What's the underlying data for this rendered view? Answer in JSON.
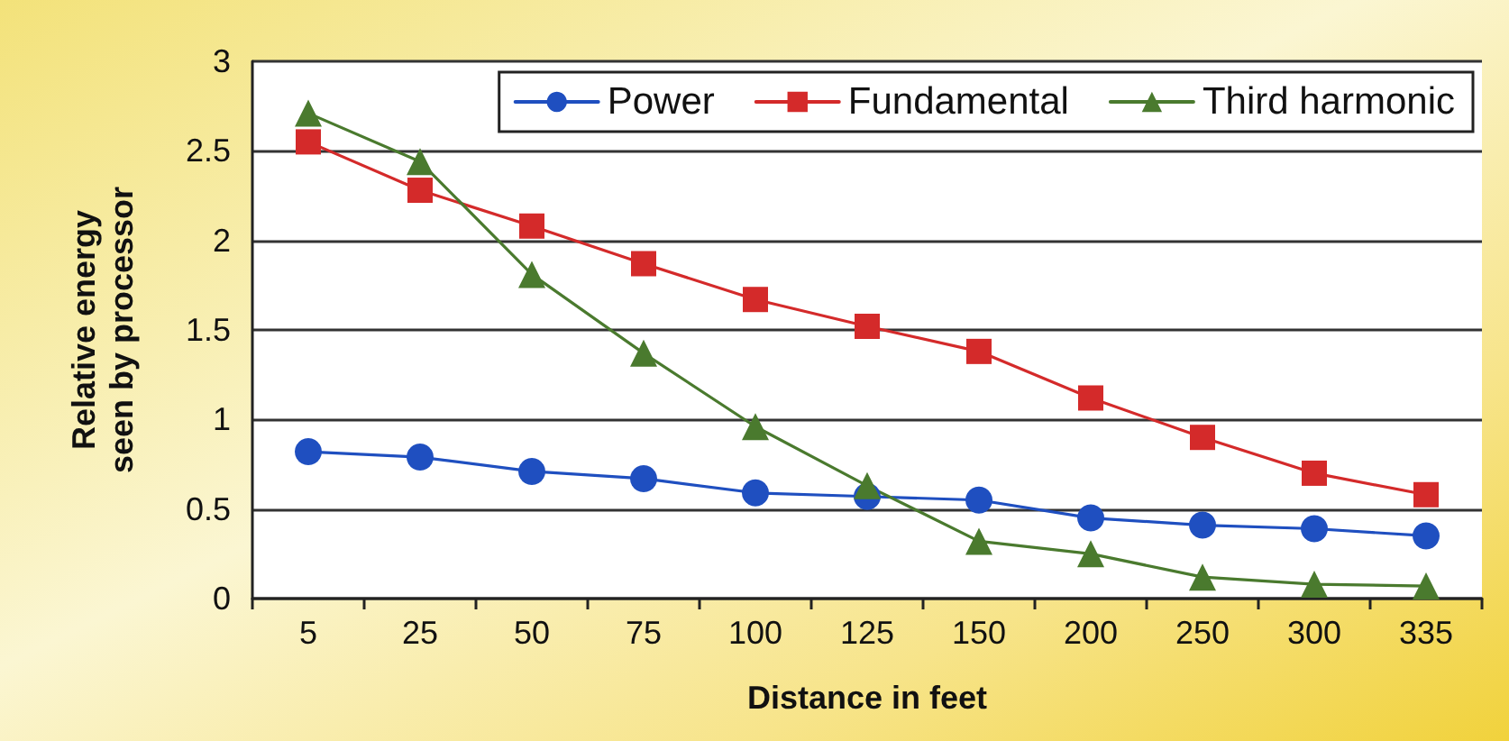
{
  "chart_data": {
    "type": "line",
    "xlabel": "Distance in feet",
    "ylabel": "Relative energy seen by processor",
    "categories": [
      "5",
      "25",
      "50",
      "75",
      "100",
      "125",
      "150",
      "200",
      "250",
      "300",
      "335"
    ],
    "series": [
      {
        "name": "Power",
        "color": "#1f4fc0",
        "marker": "circle",
        "values": [
          0.82,
          0.79,
          0.71,
          0.67,
          0.59,
          0.57,
          0.55,
          0.45,
          0.41,
          0.39,
          0.35
        ]
      },
      {
        "name": "Fundamental",
        "color": "#d42a2a",
        "marker": "square",
        "values": [
          2.55,
          2.28,
          2.08,
          1.87,
          1.67,
          1.52,
          1.38,
          1.12,
          0.9,
          0.7,
          0.58
        ]
      },
      {
        "name": "Third harmonic",
        "color": "#4a7a2e",
        "marker": "triangle",
        "values": [
          2.71,
          2.44,
          1.81,
          1.37,
          0.96,
          0.63,
          0.32,
          0.25,
          0.12,
          0.08,
          0.07
        ]
      }
    ],
    "ylim": [
      0,
      3
    ],
    "yticks": [
      0,
      0.5,
      1,
      1.5,
      2,
      2.5,
      3
    ],
    "grid": "y",
    "legend": "top right"
  }
}
